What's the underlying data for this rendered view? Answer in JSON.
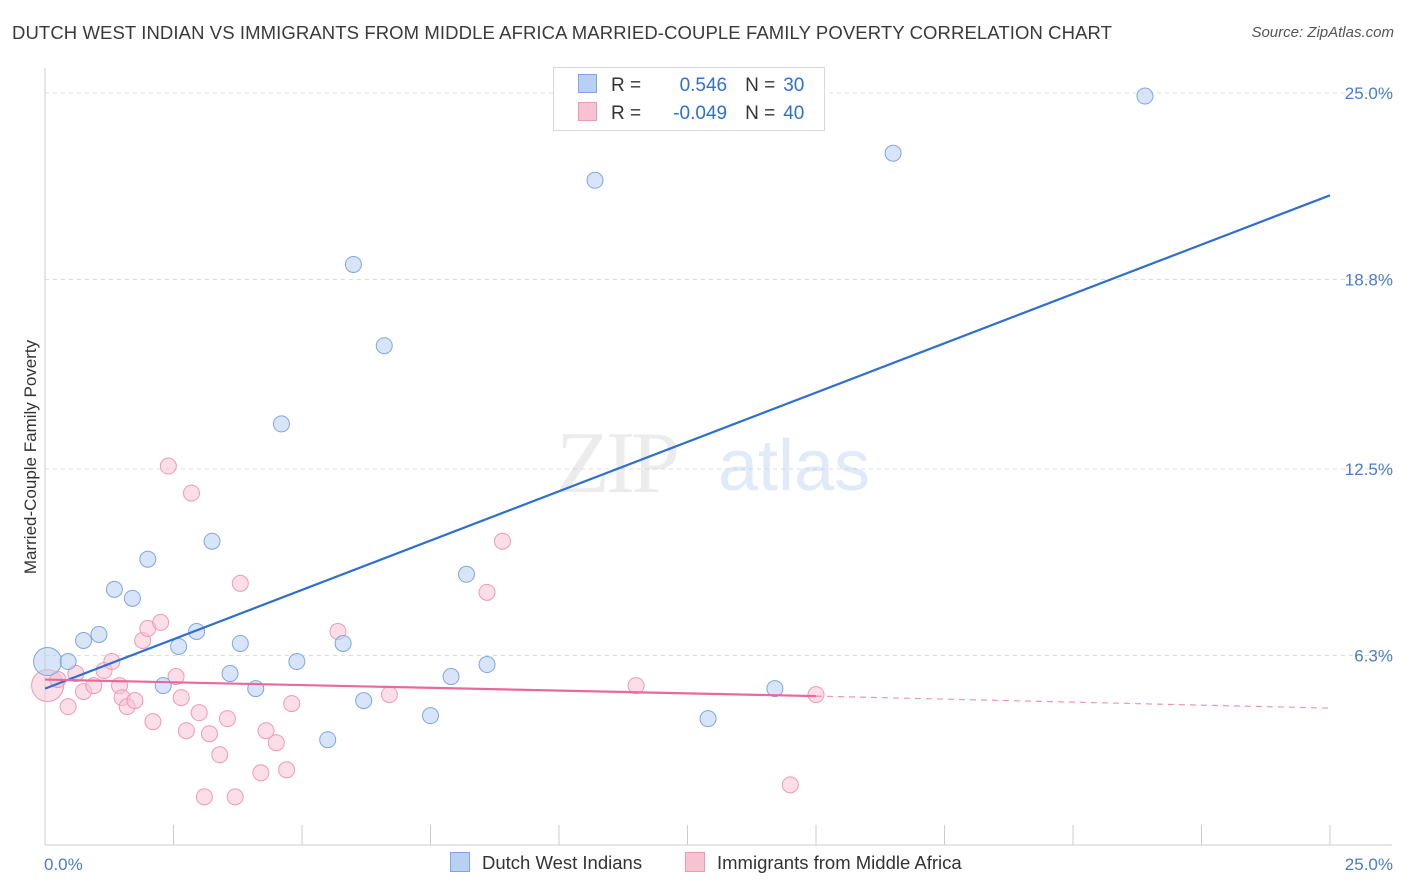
{
  "title": "DUTCH WEST INDIAN VS IMMIGRANTS FROM MIDDLE AFRICA MARRIED-COUPLE FAMILY POVERTY CORRELATION CHART",
  "source": "Source: ZipAtlas.com",
  "watermark": {
    "zip": "ZIP",
    "atlas": "atlas"
  },
  "legend": {
    "rows": [
      {
        "r_label": "R =",
        "r_value": "0.546",
        "n_label": "N =",
        "n_value": "30"
      },
      {
        "r_label": "R =",
        "r_value": "-0.049",
        "n_label": "N =",
        "n_value": "40"
      }
    ]
  },
  "colors": {
    "blue_fill": "#b8d0f2",
    "blue_stroke": "#7fa6df",
    "blue_line": "#2f6fd0",
    "pink_fill": "#f7c3d3",
    "pink_stroke": "#ee9ab4",
    "pink_line": "#e8699a",
    "grid": "#dddddd",
    "axis_text": "#4a7cc7"
  },
  "chart_data": {
    "type": "scatter",
    "title": "DUTCH WEST INDIAN VS IMMIGRANTS FROM MIDDLE AFRICA MARRIED-COUPLE FAMILY POVERTY CORRELATION CHART",
    "xlabel": "",
    "ylabel": "Married-Couple Family Poverty",
    "xlim": [
      0,
      25
    ],
    "ylim": [
      0,
      25.5
    ],
    "x_tick_labels": [
      "0.0%",
      "25.0%"
    ],
    "y_ticks": [
      6.3,
      12.5,
      18.8,
      25.0
    ],
    "y_tick_labels": [
      "6.3%",
      "12.5%",
      "18.8%",
      "25.0%"
    ],
    "grid": true,
    "series": [
      {
        "name": "Dutch West Indians",
        "color": "blue",
        "points": [
          [
            0.05,
            6.1
          ],
          [
            0.45,
            6.1
          ],
          [
            0.75,
            6.8
          ],
          [
            1.05,
            7.0
          ],
          [
            1.35,
            8.5
          ],
          [
            1.7,
            8.2
          ],
          [
            2.0,
            9.5
          ],
          [
            2.3,
            5.3
          ],
          [
            2.6,
            6.6
          ],
          [
            2.95,
            7.1
          ],
          [
            3.25,
            10.1
          ],
          [
            3.6,
            5.7
          ],
          [
            3.8,
            6.7
          ],
          [
            4.1,
            5.2
          ],
          [
            4.6,
            14.0
          ],
          [
            4.9,
            6.1
          ],
          [
            5.5,
            3.5
          ],
          [
            5.8,
            6.7
          ],
          [
            6.0,
            19.3
          ],
          [
            6.2,
            4.8
          ],
          [
            6.6,
            16.6
          ],
          [
            7.5,
            4.3
          ],
          [
            7.9,
            5.6
          ],
          [
            8.2,
            9.0
          ],
          [
            8.6,
            6.0
          ],
          [
            10.7,
            22.1
          ],
          [
            12.9,
            4.2
          ],
          [
            14.2,
            5.2
          ],
          [
            16.5,
            23.0
          ],
          [
            21.4,
            24.9
          ]
        ],
        "trend": {
          "x": [
            0.0,
            25.0
          ],
          "y": [
            5.2,
            21.6
          ]
        }
      },
      {
        "name": "Immigrants from Middle Africa",
        "color": "pink",
        "points": [
          [
            0.05,
            5.3
          ],
          [
            0.25,
            5.5
          ],
          [
            0.45,
            4.6
          ],
          [
            0.6,
            5.7
          ],
          [
            0.75,
            5.1
          ],
          [
            0.95,
            5.3
          ],
          [
            1.15,
            5.8
          ],
          [
            1.3,
            6.1
          ],
          [
            1.45,
            5.3
          ],
          [
            1.5,
            4.9
          ],
          [
            1.6,
            4.6
          ],
          [
            1.75,
            4.8
          ],
          [
            1.9,
            6.8
          ],
          [
            2.0,
            7.2
          ],
          [
            2.1,
            4.1
          ],
          [
            2.25,
            7.4
          ],
          [
            2.4,
            12.6
          ],
          [
            2.55,
            5.6
          ],
          [
            2.65,
            4.9
          ],
          [
            2.75,
            3.8
          ],
          [
            2.85,
            11.7
          ],
          [
            3.0,
            4.4
          ],
          [
            3.1,
            1.6
          ],
          [
            3.2,
            3.7
          ],
          [
            3.4,
            3.0
          ],
          [
            3.55,
            4.2
          ],
          [
            3.7,
            1.6
          ],
          [
            3.8,
            8.7
          ],
          [
            4.2,
            2.4
          ],
          [
            4.3,
            3.8
          ],
          [
            4.5,
            3.4
          ],
          [
            4.7,
            2.5
          ],
          [
            4.8,
            4.7
          ],
          [
            5.7,
            7.1
          ],
          [
            6.7,
            5.0
          ],
          [
            8.6,
            8.4
          ],
          [
            8.9,
            10.1
          ],
          [
            11.5,
            5.3
          ],
          [
            14.5,
            2.0
          ],
          [
            15.0,
            5.0
          ]
        ],
        "trend": {
          "x": [
            0.0,
            15.0
          ],
          "y": [
            5.5,
            4.95
          ]
        },
        "trend_dashed": {
          "x": [
            15.0,
            25.0
          ],
          "y": [
            4.95,
            4.55
          ]
        }
      }
    ]
  },
  "bottom_legend": [
    {
      "label": "Dutch West Indians"
    },
    {
      "label": "Immigrants from Middle Africa"
    }
  ]
}
